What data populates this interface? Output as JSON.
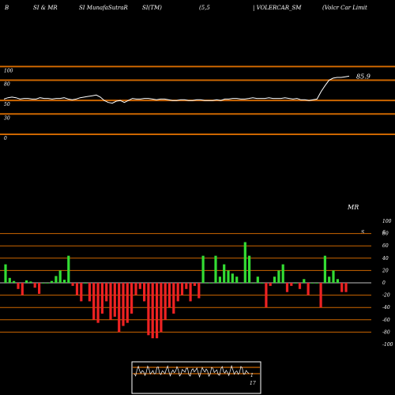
{
  "header": {
    "items": [
      "B",
      "SI & MR",
      "SI MunafaSutraR",
      "SI(TM)",
      "(5,5",
      "| VOLERCAR_SM",
      "(Volcr Car Limit"
    ]
  },
  "rsi_panel": {
    "h_lines": [
      100,
      80,
      50,
      30,
      0
    ],
    "tick_labels": [
      "100",
      "80",
      "50",
      "30",
      "0"
    ],
    "last_value_label": "85.9",
    "line_color": "#ffffff",
    "level_color": "#cc6600"
  },
  "mrsi_panel": {
    "title": "MR",
    "title_suffix": "S",
    "last_label": "6.",
    "tick_labels": [
      "100",
      "80",
      "60",
      "40",
      "20",
      "0",
      "-20",
      "-40",
      "-60",
      "-80",
      "-100"
    ],
    "up_color": "#33dd33",
    "down_color": "#ee2222",
    "zero_label_color": "#cc6600"
  },
  "mini_panel": {
    "tick_labels": [
      "1",
      "17"
    ]
  },
  "chart_data": {
    "type": "bar",
    "title": "",
    "ylim": [
      -100,
      100
    ],
    "rsi_series": [
      52,
      54,
      55,
      54,
      52,
      53,
      53,
      52,
      52,
      54,
      53,
      53,
      52,
      53,
      53,
      54,
      52,
      51,
      52,
      54,
      55,
      56,
      57,
      58,
      55,
      50,
      47,
      46,
      49,
      50,
      47,
      50,
      53,
      52,
      52,
      53,
      53,
      52,
      51,
      52,
      52,
      51,
      50,
      50,
      51,
      51,
      50,
      50,
      51,
      51,
      50,
      50,
      50,
      51,
      50,
      52,
      52,
      53,
      53,
      52,
      52,
      53,
      54,
      53,
      53,
      53,
      54,
      53,
      53,
      53,
      54,
      53,
      52,
      53,
      51,
      51,
      50,
      51,
      52,
      63,
      72,
      80,
      83,
      84,
      84,
      85,
      85.9
    ],
    "mrsi_values": [
      30,
      8,
      3,
      -10,
      -20,
      4,
      2,
      -8,
      -18,
      0,
      0,
      3,
      11,
      20,
      5,
      44,
      -5,
      -20,
      -30,
      0,
      -30,
      -60,
      -65,
      -50,
      -30,
      -60,
      -55,
      -80,
      -70,
      -65,
      -50,
      -20,
      -10,
      -30,
      -85,
      -90,
      -90,
      -80,
      -60,
      -40,
      -50,
      -30,
      -20,
      -10,
      -30,
      -5,
      -25,
      44,
      0,
      0,
      44,
      10,
      30,
      20,
      15,
      10,
      0,
      66,
      44,
      0,
      10,
      0,
      -40,
      -5,
      10,
      20,
      30,
      -15,
      -5,
      0,
      -10,
      6,
      -20,
      0,
      0,
      -40,
      44,
      10,
      20,
      6,
      -15,
      -15
    ]
  }
}
